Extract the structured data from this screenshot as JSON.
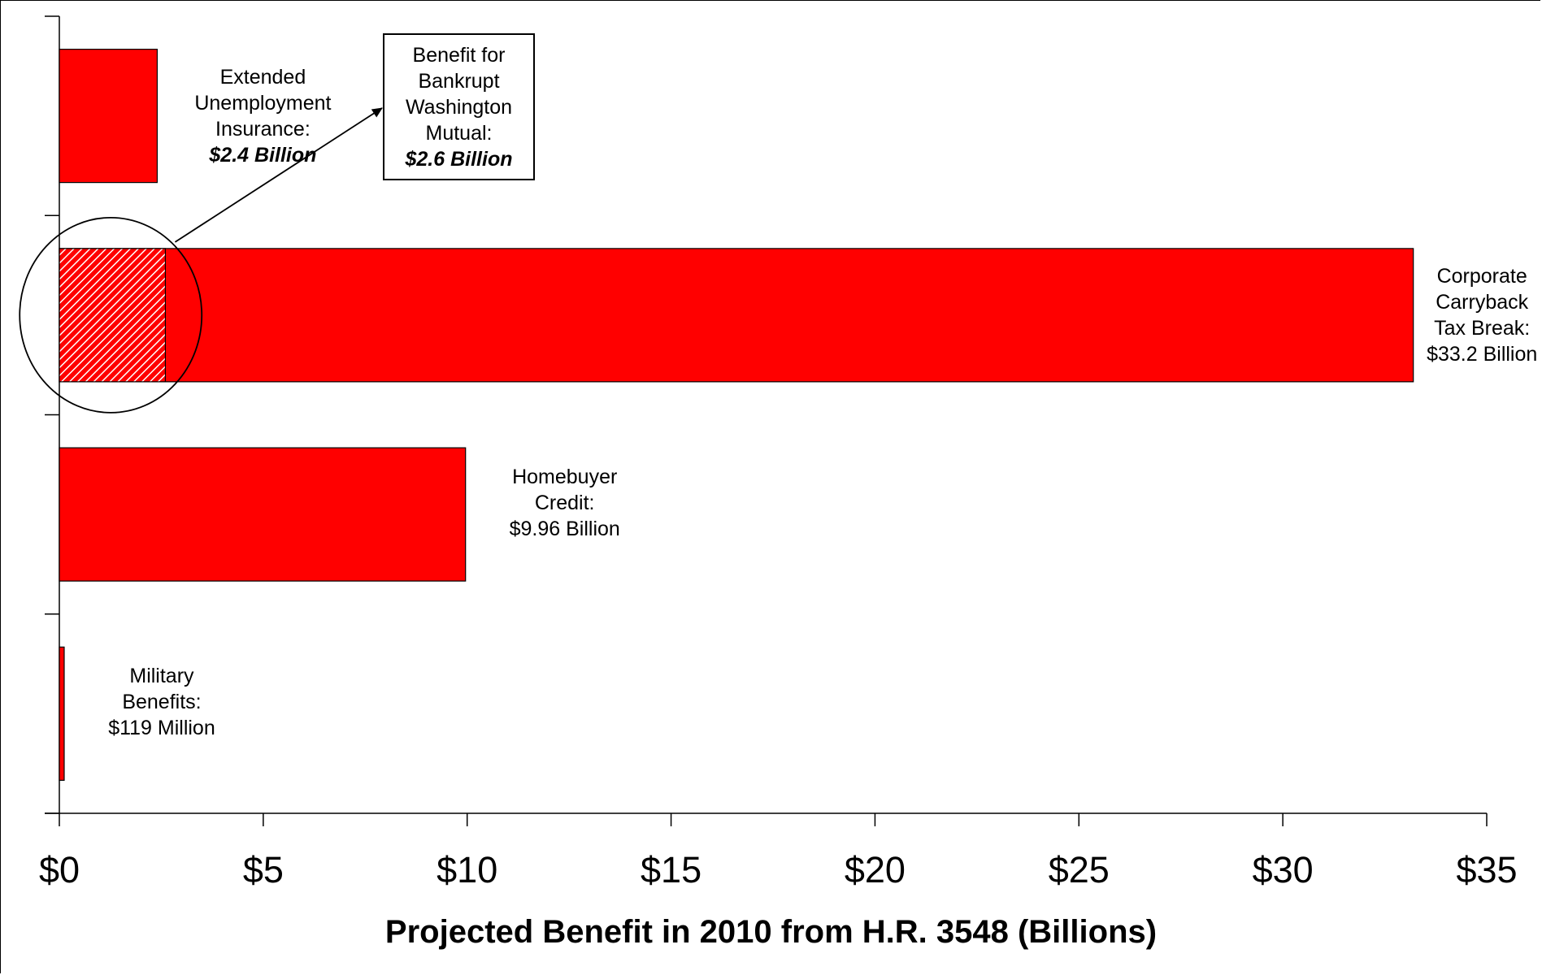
{
  "chart_data": {
    "type": "bar",
    "orientation": "horizontal",
    "categories": [
      "Extended Unemployment Insurance",
      "Corporate Carryback Tax Break",
      "Homebuyer Credit",
      "Military Benefits"
    ],
    "values": [
      2.4,
      33.2,
      9.96,
      0.119
    ],
    "highlight": {
      "category": "Corporate Carryback Tax Break",
      "portion_value": 2.6,
      "callout_lines": [
        "Benefit for",
        "Bankrupt",
        "Washington",
        "Mutual:"
      ],
      "callout_value": "$2.6 Billion"
    },
    "bar_labels": [
      {
        "lines": [
          "Extended",
          "Unemployment",
          "Insurance:"
        ],
        "value": "$2.4 Billion",
        "value_style": "bold-italic"
      },
      {
        "lines": [
          "Corporate",
          "Carryback",
          "Tax Break:"
        ],
        "value": "$33.2 Billion",
        "value_style": "normal"
      },
      {
        "lines": [
          "Homebuyer",
          "Credit:"
        ],
        "value": "$9.96 Billion",
        "value_style": "normal"
      },
      {
        "lines": [
          "Military",
          "Benefits:"
        ],
        "value": "$119 Million",
        "value_style": "normal"
      }
    ],
    "xlabel": "Projected Benefit in 2010 from H.R. 3548 (Billions)",
    "ylabel": "",
    "title": "",
    "xlim": [
      0,
      35
    ],
    "xticks": [
      0,
      5,
      10,
      15,
      20,
      25,
      30,
      35
    ],
    "xtick_labels": [
      "$0",
      "$5",
      "$10",
      "$15",
      "$20",
      "$25",
      "$30",
      "$35"
    ],
    "grid": false,
    "colors": {
      "bar": "#ff0000",
      "highlight_hatch": "#ffffff",
      "outline": "#000000"
    }
  }
}
